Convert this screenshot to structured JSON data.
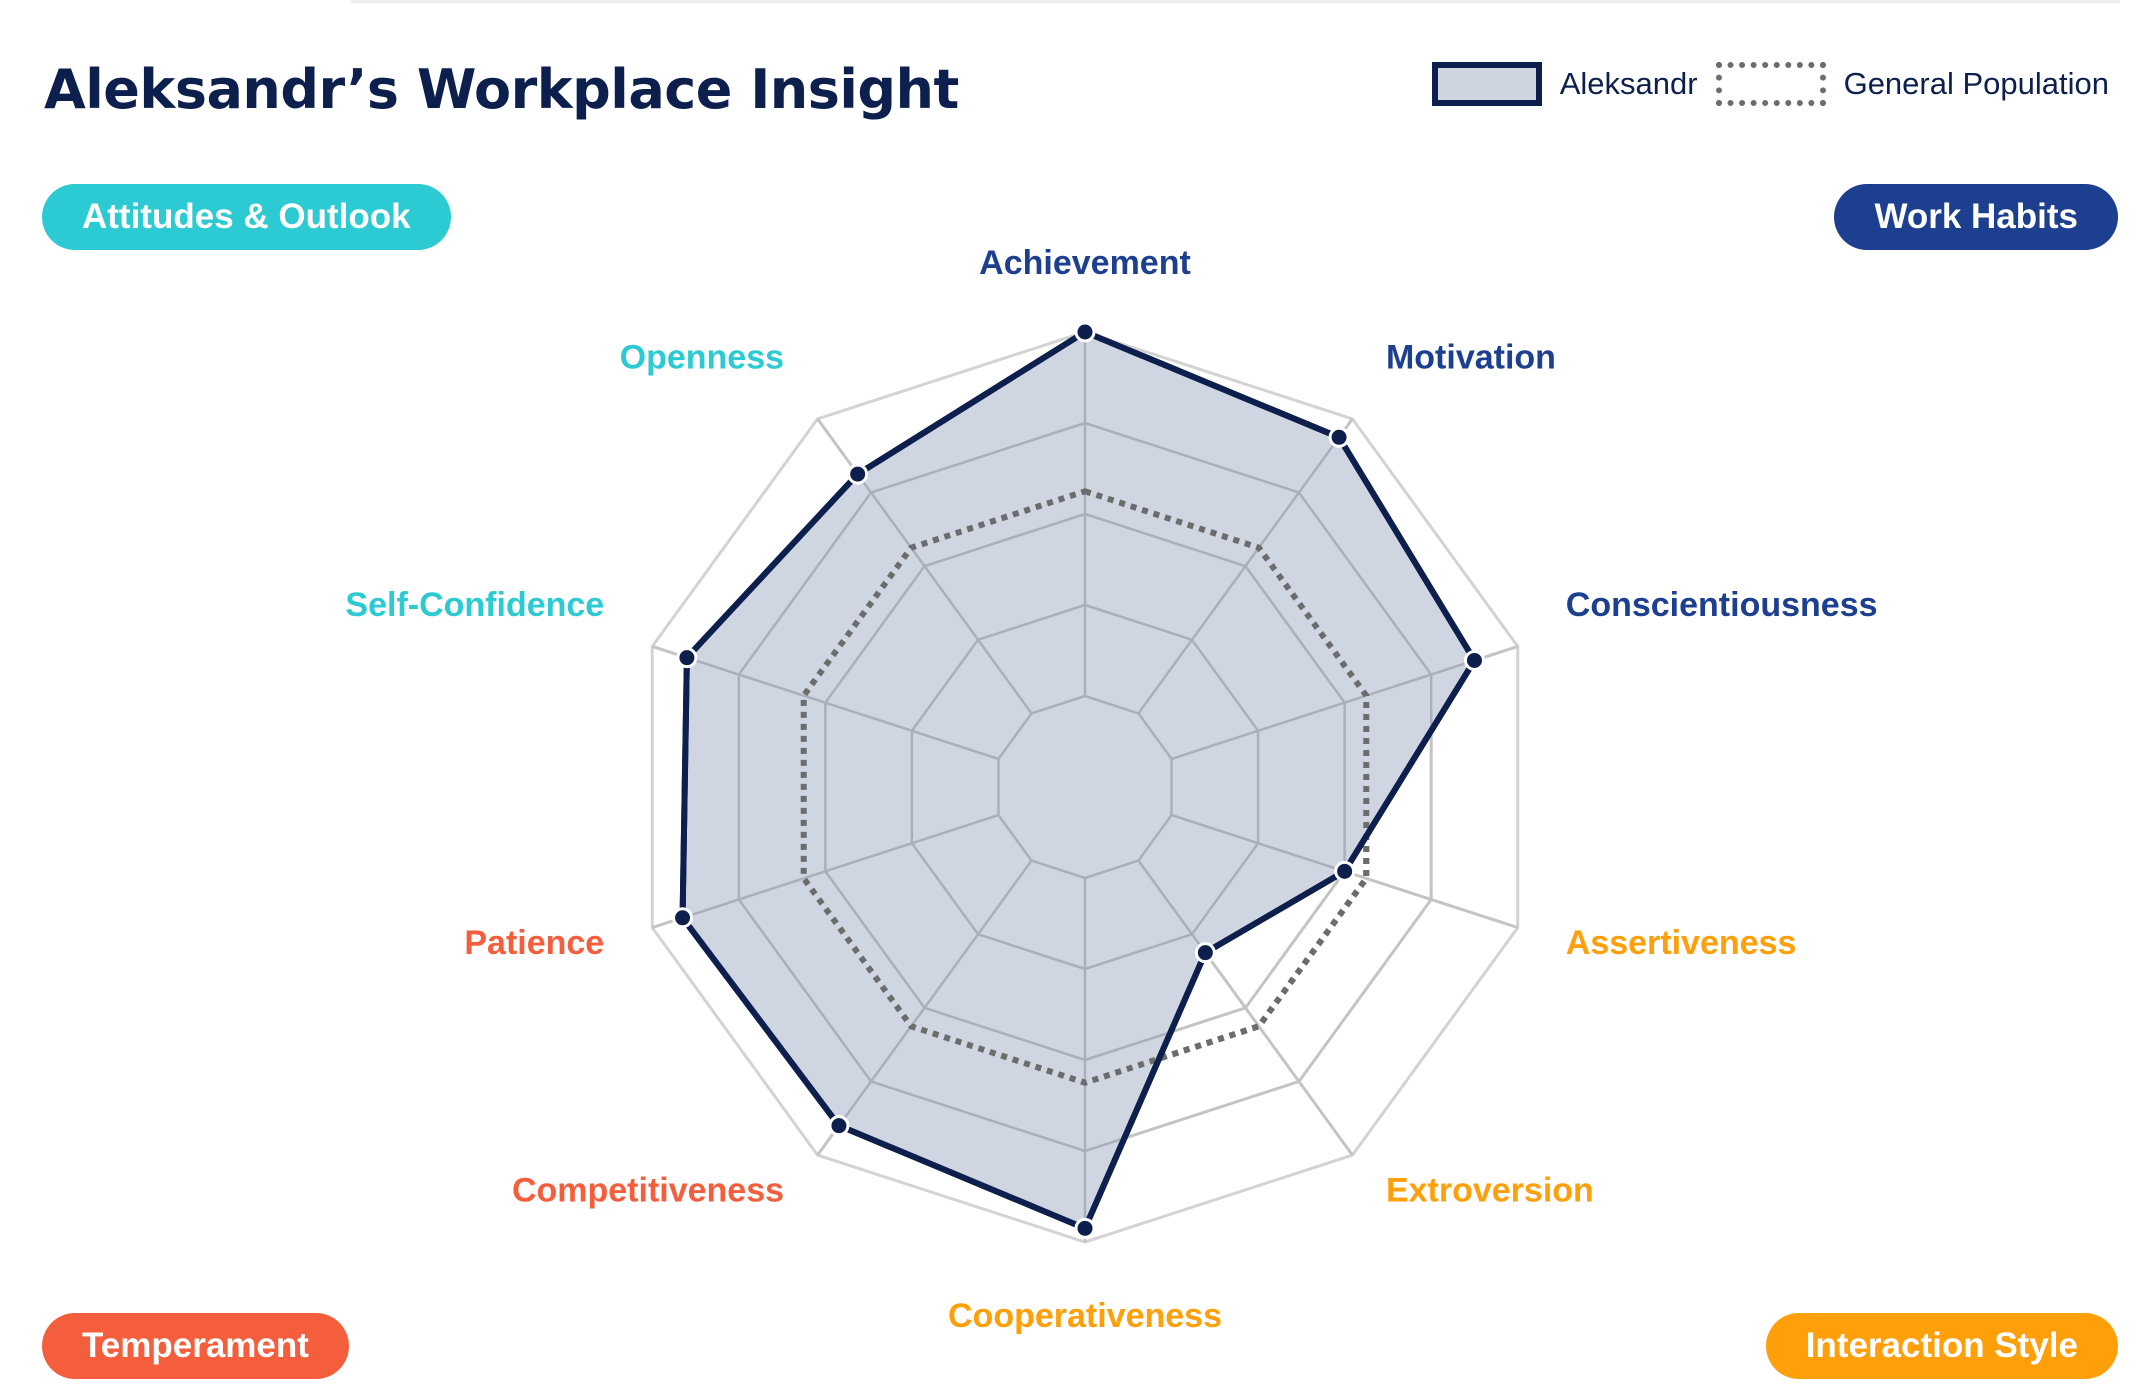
{
  "title": "Aleksandr’s Workplace Insight",
  "legend": {
    "series_label": "Aleksandr",
    "population_label": "General Population"
  },
  "colors": {
    "navy": "#0d1f4d",
    "teal": "#2ccad3",
    "blue": "#1d3f8f",
    "orange": "#ff9f0a",
    "red": "#f55e3c",
    "fill": "#ced4e0",
    "grid": "#d3d3d3",
    "population": "#6c6c6c"
  },
  "categories": [
    {
      "label": "Attitudes & Outlook",
      "color": "#2ccad3"
    },
    {
      "label": "Work Habits",
      "color": "#1d3f8f"
    },
    {
      "label": "Temperament",
      "color": "#f55e3c"
    },
    {
      "label": "Interaction Style",
      "color": "#ff9f0a"
    }
  ],
  "chart_data": {
    "type": "radar",
    "axes": [
      {
        "label": "Achievement",
        "group": "Work Habits"
      },
      {
        "label": "Motivation",
        "group": "Work Habits"
      },
      {
        "label": "Conscientiousness",
        "group": "Work Habits"
      },
      {
        "label": "Assertiveness",
        "group": "Interaction Style"
      },
      {
        "label": "Extroversion",
        "group": "Interaction Style"
      },
      {
        "label": "Cooperativeness",
        "group": "Interaction Style"
      },
      {
        "label": "Competitiveness",
        "group": "Temperament"
      },
      {
        "label": "Patience",
        "group": "Temperament"
      },
      {
        "label": "Self-Confidence",
        "group": "Attitudes & Outlook"
      },
      {
        "label": "Openness",
        "group": "Attitudes & Outlook"
      }
    ],
    "range": [
      0,
      10
    ],
    "rings": 5,
    "series": [
      {
        "name": "Aleksandr",
        "values": [
          10,
          9.5,
          9.0,
          6.0,
          4.5,
          9.7,
          9.2,
          9.3,
          9.2,
          8.5
        ]
      },
      {
        "name": "General Population",
        "values": [
          6.5,
          6.5,
          6.5,
          6.5,
          6.5,
          6.5,
          6.5,
          6.5,
          6.5,
          6.5
        ]
      }
    ]
  }
}
